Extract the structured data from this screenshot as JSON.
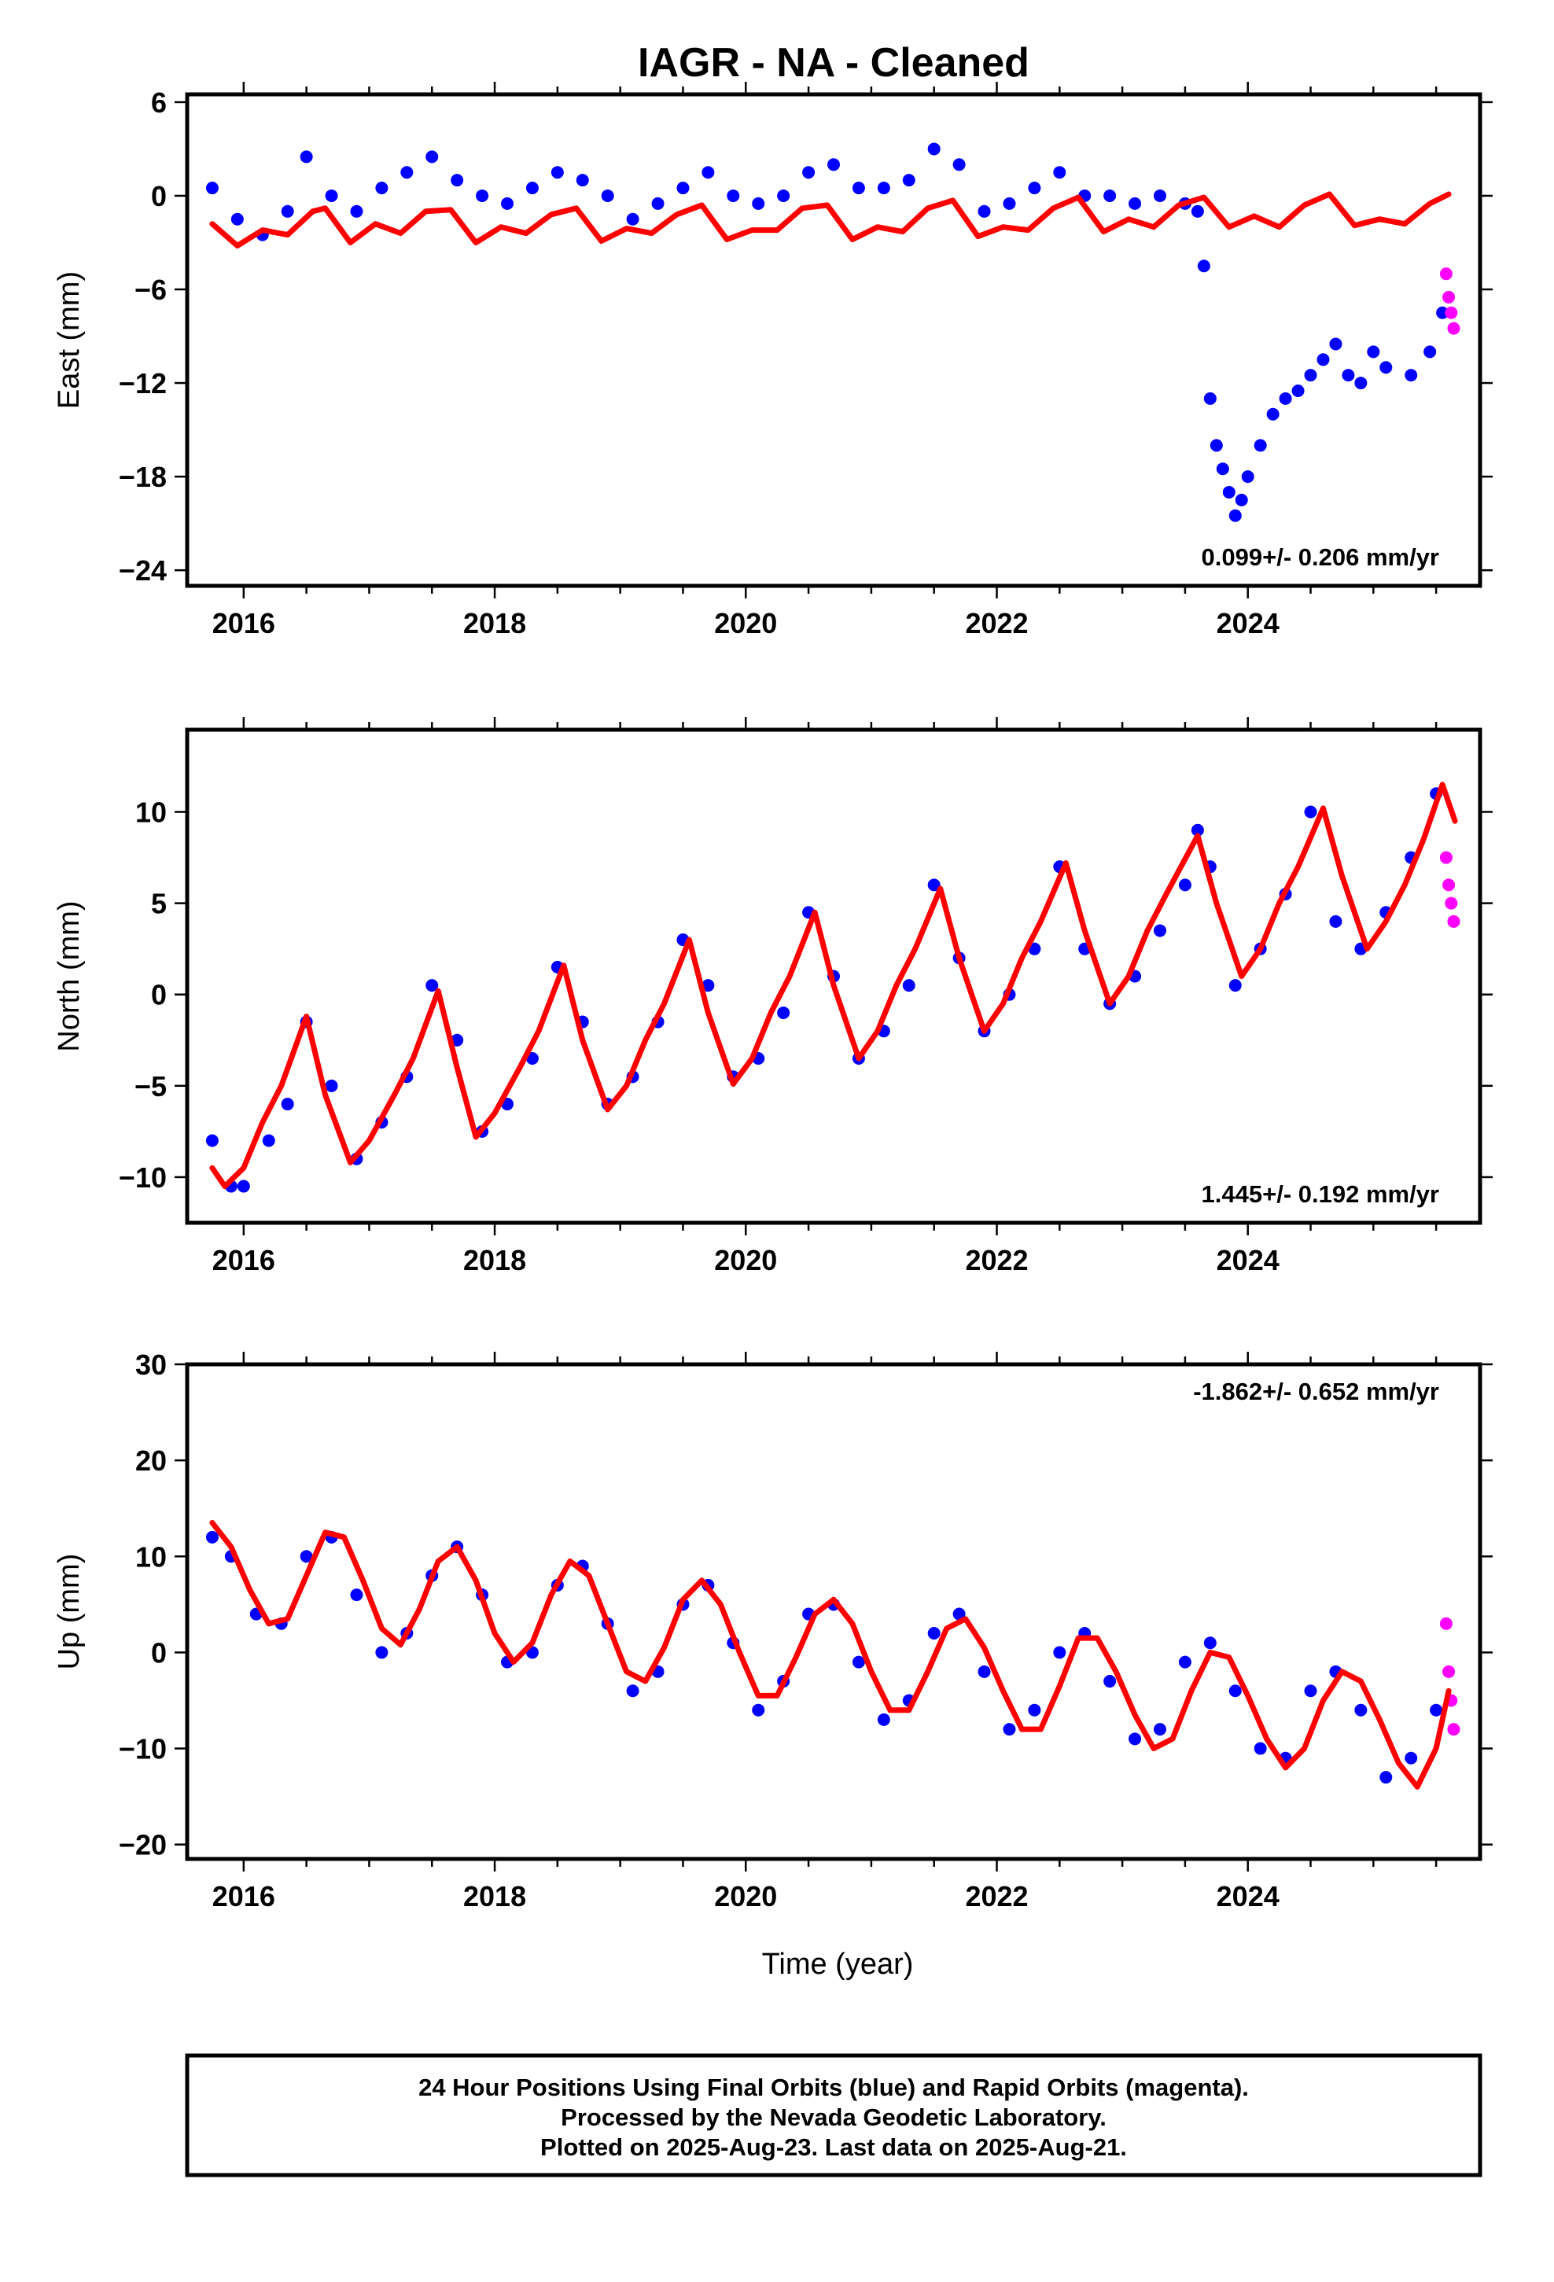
{
  "title": "IAGR  - NA - Cleaned",
  "xlabel": "Time (year)",
  "colors": {
    "final": "#0000ff",
    "rapid": "#ff00ff",
    "fit": "#ff0000"
  },
  "chart_data": [
    {
      "type": "scatter",
      "name": "east",
      "ylabel": "East (mm)",
      "xlim": [
        2015.55,
        2025.85
      ],
      "ylim": [
        -25,
        6.5
      ],
      "xticks": [
        2016,
        2018,
        2020,
        2022,
        2024
      ],
      "yticks": [
        6,
        0,
        -6,
        -12,
        -18,
        -24
      ],
      "rate_text": "0.099+/- 0.206 mm/yr",
      "rate_position": "bottom-right",
      "series": [
        {
          "name": "Final Orbits",
          "color": "#0000ff",
          "x": [
            2015.75,
            2015.95,
            2016.15,
            2016.35,
            2016.5,
            2016.7,
            2016.9,
            2017.1,
            2017.3,
            2017.5,
            2017.7,
            2017.9,
            2018.1,
            2018.3,
            2018.5,
            2018.7,
            2018.9,
            2019.1,
            2019.3,
            2019.5,
            2019.7,
            2019.9,
            2020.1,
            2020.3,
            2020.5,
            2020.7,
            2020.9,
            2021.1,
            2021.3,
            2021.5,
            2021.7,
            2021.9,
            2022.1,
            2022.3,
            2022.5,
            2022.7,
            2022.9,
            2023.1,
            2023.3,
            2023.5,
            2023.6,
            2023.65,
            2023.7,
            2023.75,
            2023.8,
            2023.85,
            2023.9,
            2023.95,
            2024.0,
            2024.1,
            2024.2,
            2024.3,
            2024.4,
            2024.5,
            2024.6,
            2024.7,
            2024.8,
            2024.9,
            2025.0,
            2025.1,
            2025.3,
            2025.45,
            2025.55
          ],
          "y": [
            0.5,
            -1.5,
            -2.5,
            -1.0,
            2.5,
            0.0,
            -1.0,
            0.5,
            1.5,
            2.5,
            1.0,
            0.0,
            -0.5,
            0.5,
            1.5,
            1.0,
            0.0,
            -1.5,
            -0.5,
            0.5,
            1.5,
            0.0,
            -0.5,
            0.0,
            1.5,
            2.0,
            0.5,
            0.5,
            1.0,
            3.0,
            2.0,
            -1.0,
            -0.5,
            0.5,
            1.5,
            0.0,
            0.0,
            -0.5,
            0.0,
            -0.5,
            -1.0,
            -4.5,
            -13.0,
            -16.0,
            -17.5,
            -19.0,
            -20.5,
            -19.5,
            -18.0,
            -16.0,
            -14.0,
            -13.0,
            -12.5,
            -11.5,
            -10.5,
            -9.5,
            -11.5,
            -12.0,
            -10.0,
            -11.0,
            -11.5,
            -10.0,
            -7.5
          ]
        },
        {
          "name": "Rapid Orbits",
          "color": "#ff00ff",
          "x": [
            2025.58,
            2025.6,
            2025.62,
            2025.64
          ],
          "y": [
            -5.0,
            -6.5,
            -7.5,
            -8.5
          ]
        }
      ],
      "fit": {
        "x": [
          2015.75,
          2015.95,
          2016.15,
          2016.35,
          2016.55,
          2016.65,
          2016.85,
          2017.05,
          2017.25,
          2017.45,
          2017.65,
          2017.85,
          2018.05,
          2018.25,
          2018.45,
          2018.65,
          2018.85,
          2019.05,
          2019.25,
          2019.45,
          2019.65,
          2019.85,
          2020.05,
          2020.25,
          2020.45,
          2020.65,
          2020.85,
          2021.05,
          2021.25,
          2021.45,
          2021.65,
          2021.85,
          2022.05,
          2022.25,
          2022.45,
          2022.65,
          2022.85,
          2023.05,
          2023.25,
          2023.45,
          2023.65,
          2023.85,
          2024.05,
          2024.25,
          2024.45,
          2024.65,
          2024.85,
          2025.05,
          2025.25,
          2025.45,
          2025.6
        ],
        "y": [
          -1.8,
          -3.2,
          -2.2,
          -2.5,
          -1.0,
          -0.8,
          -3.0,
          -1.8,
          -2.4,
          -1.0,
          -0.9,
          -3.0,
          -2.0,
          -2.4,
          -1.2,
          -0.8,
          -2.9,
          -2.1,
          -2.4,
          -1.2,
          -0.6,
          -2.8,
          -2.2,
          -2.2,
          -0.8,
          -0.6,
          -2.8,
          -2.0,
          -2.3,
          -0.8,
          -0.3,
          -2.6,
          -2.0,
          -2.2,
          -0.8,
          -0.1,
          -2.3,
          -1.5,
          -2.0,
          -0.6,
          -0.1,
          -2.0,
          -1.3,
          -2.0,
          -0.6,
          0.1,
          -1.9,
          -1.5,
          -1.8,
          -0.5,
          0.1
        ]
      }
    },
    {
      "type": "scatter",
      "name": "north",
      "ylabel": "North (mm)",
      "xlim": [
        2015.55,
        2025.85
      ],
      "ylim": [
        -12.5,
        14.5
      ],
      "xticks": [
        2016,
        2018,
        2020,
        2022,
        2024
      ],
      "yticks": [
        10,
        5,
        0,
        -5,
        -10
      ],
      "rate_text": "1.445+/- 0.192 mm/yr",
      "rate_position": "bottom-right",
      "series": [
        {
          "name": "Final Orbits",
          "color": "#0000ff",
          "x": [
            2015.75,
            2015.9,
            2016.0,
            2016.2,
            2016.35,
            2016.5,
            2016.7,
            2016.9,
            2017.1,
            2017.3,
            2017.5,
            2017.7,
            2017.9,
            2018.1,
            2018.3,
            2018.5,
            2018.7,
            2018.9,
            2019.1,
            2019.3,
            2019.5,
            2019.7,
            2019.9,
            2020.1,
            2020.3,
            2020.5,
            2020.7,
            2020.9,
            2021.1,
            2021.3,
            2021.5,
            2021.7,
            2021.9,
            2022.1,
            2022.3,
            2022.5,
            2022.7,
            2022.9,
            2023.1,
            2023.3,
            2023.5,
            2023.6,
            2023.7,
            2023.9,
            2024.1,
            2024.3,
            2024.5,
            2024.7,
            2024.9,
            2025.1,
            2025.3,
            2025.5
          ],
          "y": [
            -8.0,
            -10.5,
            -10.5,
            -8.0,
            -6.0,
            -1.5,
            -5.0,
            -9.0,
            -7.0,
            -4.5,
            0.5,
            -2.5,
            -7.5,
            -6.0,
            -3.5,
            1.5,
            -1.5,
            -6.0,
            -4.5,
            -1.5,
            3.0,
            0.5,
            -4.5,
            -3.5,
            -1.0,
            4.5,
            1.0,
            -3.5,
            -2.0,
            0.5,
            6.0,
            2.0,
            -2.0,
            0.0,
            2.5,
            7.0,
            2.5,
            -0.5,
            1.0,
            3.5,
            6.0,
            9.0,
            7.0,
            0.5,
            2.5,
            5.5,
            10.0,
            4.0,
            2.5,
            4.5,
            7.5,
            11.0
          ]
        },
        {
          "name": "Rapid Orbits",
          "color": "#ff00ff",
          "x": [
            2025.58,
            2025.6,
            2025.62,
            2025.64
          ],
          "y": [
            7.5,
            6.0,
            5.0,
            4.0
          ]
        }
      ],
      "fit": {
        "x": [
          2015.75,
          2015.85,
          2016.0,
          2016.15,
          2016.3,
          2016.5,
          2016.65,
          2016.85,
          2017.0,
          2017.2,
          2017.35,
          2017.55,
          2017.7,
          2017.85,
          2018.0,
          2018.2,
          2018.35,
          2018.55,
          2018.7,
          2018.9,
          2019.05,
          2019.2,
          2019.35,
          2019.55,
          2019.7,
          2019.9,
          2020.05,
          2020.2,
          2020.35,
          2020.55,
          2020.7,
          2020.9,
          2021.05,
          2021.2,
          2021.35,
          2021.55,
          2021.7,
          2021.9,
          2022.05,
          2022.2,
          2022.35,
          2022.55,
          2022.7,
          2022.9,
          2023.05,
          2023.2,
          2023.35,
          2023.6,
          2023.75,
          2023.95,
          2024.1,
          2024.25,
          2024.4,
          2024.6,
          2024.75,
          2024.95,
          2025.1,
          2025.25,
          2025.4,
          2025.55,
          2025.65
        ],
        "y": [
          -9.5,
          -10.5,
          -9.5,
          -7.0,
          -5.0,
          -1.2,
          -5.5,
          -9.2,
          -8.0,
          -5.5,
          -3.5,
          0.2,
          -4.0,
          -7.8,
          -6.5,
          -4.0,
          -2.0,
          1.6,
          -2.5,
          -6.3,
          -5.0,
          -2.5,
          -0.5,
          3.0,
          -1.0,
          -4.9,
          -3.5,
          -1.0,
          1.0,
          4.5,
          0.5,
          -3.5,
          -2.0,
          0.5,
          2.5,
          5.8,
          2.0,
          -2.0,
          -0.5,
          2.0,
          4.0,
          7.2,
          3.5,
          -0.5,
          1.0,
          3.5,
          5.5,
          8.7,
          5.0,
          1.0,
          2.5,
          5.0,
          7.0,
          10.2,
          6.5,
          2.5,
          4.0,
          6.0,
          8.5,
          11.5,
          9.5
        ]
      }
    },
    {
      "type": "scatter",
      "name": "up",
      "ylabel": "Up (mm)",
      "xlim": [
        2015.55,
        2025.85
      ],
      "ylim": [
        -21.5,
        30
      ],
      "xticks": [
        2016,
        2018,
        2020,
        2022,
        2024
      ],
      "yticks": [
        30,
        20,
        10,
        0,
        -10,
        -20
      ],
      "rate_text": "-1.862+/- 0.652 mm/yr",
      "rate_position": "top-right",
      "series": [
        {
          "name": "Final Orbits",
          "color": "#0000ff",
          "x": [
            2015.75,
            2015.9,
            2016.1,
            2016.3,
            2016.5,
            2016.7,
            2016.9,
            2017.1,
            2017.3,
            2017.5,
            2017.7,
            2017.9,
            2018.1,
            2018.3,
            2018.5,
            2018.7,
            2018.9,
            2019.1,
            2019.3,
            2019.5,
            2019.7,
            2019.9,
            2020.1,
            2020.3,
            2020.5,
            2020.7,
            2020.9,
            2021.1,
            2021.3,
            2021.5,
            2021.7,
            2021.9,
            2022.1,
            2022.3,
            2022.5,
            2022.7,
            2022.9,
            2023.1,
            2023.3,
            2023.5,
            2023.7,
            2023.9,
            2024.1,
            2024.3,
            2024.5,
            2024.7,
            2024.9,
            2025.1,
            2025.3,
            2025.5
          ],
          "y": [
            12.0,
            10.0,
            4.0,
            3.0,
            10.0,
            12.0,
            6.0,
            0.0,
            2.0,
            8.0,
            11.0,
            6.0,
            -1.0,
            0.0,
            7.0,
            9.0,
            3.0,
            -4.0,
            -2.0,
            5.0,
            7.0,
            1.0,
            -6.0,
            -3.0,
            4.0,
            5.0,
            -1.0,
            -7.0,
            -5.0,
            2.0,
            4.0,
            -2.0,
            -8.0,
            -6.0,
            0.0,
            2.0,
            -3.0,
            -9.0,
            -8.0,
            -1.0,
            1.0,
            -4.0,
            -10.0,
            -11.0,
            -4.0,
            -2.0,
            -6.0,
            -13.0,
            -11.0,
            -6.0
          ]
        },
        {
          "name": "Rapid Orbits",
          "color": "#ff00ff",
          "x": [
            2025.58,
            2025.6,
            2025.62,
            2025.64
          ],
          "y": [
            3.0,
            -2.0,
            -5.0,
            -8.0
          ]
        }
      ],
      "fit": {
        "x": [
          2015.75,
          2015.9,
          2016.05,
          2016.2,
          2016.35,
          2016.5,
          2016.65,
          2016.8,
          2016.95,
          2017.1,
          2017.25,
          2017.4,
          2017.55,
          2017.7,
          2017.85,
          2018.0,
          2018.15,
          2018.3,
          2018.45,
          2018.6,
          2018.75,
          2018.9,
          2019.05,
          2019.2,
          2019.35,
          2019.5,
          2019.65,
          2019.8,
          2019.95,
          2020.1,
          2020.25,
          2020.4,
          2020.55,
          2020.7,
          2020.85,
          2021.0,
          2021.15,
          2021.3,
          2021.45,
          2021.6,
          2021.75,
          2021.9,
          2022.05,
          2022.2,
          2022.35,
          2022.5,
          2022.65,
          2022.8,
          2022.95,
          2023.1,
          2023.25,
          2023.4,
          2023.55,
          2023.7,
          2023.85,
          2024.0,
          2024.15,
          2024.3,
          2024.45,
          2024.6,
          2024.75,
          2024.9,
          2025.05,
          2025.2,
          2025.35,
          2025.5,
          2025.6
        ],
        "y": [
          13.5,
          11.0,
          6.5,
          3.0,
          3.5,
          8.0,
          12.5,
          12.0,
          7.5,
          2.5,
          0.8,
          4.5,
          9.5,
          11.0,
          7.5,
          2.0,
          -1.0,
          1.0,
          6.0,
          9.5,
          8.0,
          3.0,
          -2.0,
          -3.0,
          0.5,
          5.5,
          7.5,
          5.0,
          0.0,
          -4.5,
          -4.5,
          -0.5,
          4.0,
          5.5,
          3.0,
          -2.0,
          -6.0,
          -6.0,
          -2.0,
          2.5,
          3.5,
          0.5,
          -4.0,
          -8.0,
          -8.0,
          -3.5,
          1.5,
          1.5,
          -2.0,
          -6.5,
          -10.0,
          -9.0,
          -4.0,
          0.0,
          -0.5,
          -4.5,
          -9.0,
          -12.0,
          -10.0,
          -5.0,
          -2.0,
          -3.0,
          -7.0,
          -11.5,
          -14.0,
          -10.0,
          -4.0
        ]
      }
    }
  ],
  "footer": {
    "line1": "24 Hour Positions Using Final Orbits (blue) and Rapid Orbits (magenta).",
    "line2": "Processed by the Nevada Geodetic Laboratory.",
    "line3": "Plotted on 2025-Aug-23. Last data on 2025-Aug-21."
  }
}
